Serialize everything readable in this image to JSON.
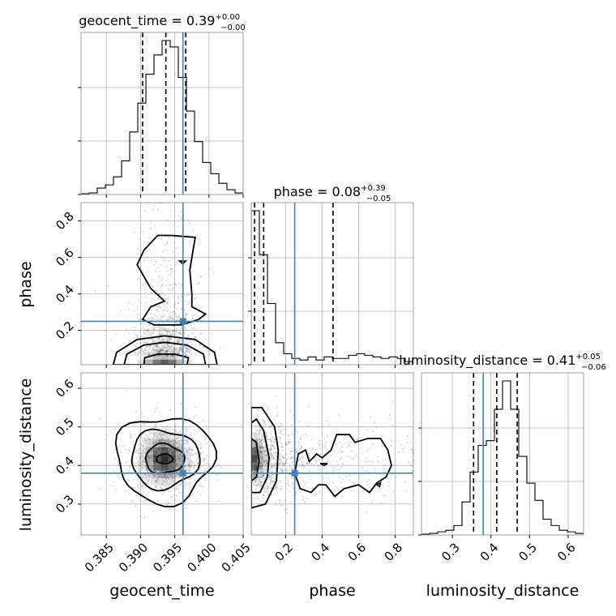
{
  "figure": {
    "ticks_font": "sans-serif",
    "truth_color": "#4682b4",
    "hist_color": "#000000",
    "grid_color": "#b0b0b0"
  },
  "chart_data": {
    "type": "corner",
    "parameters": [
      "geocent_time",
      "phase",
      "luminosity_distance"
    ],
    "truths": {
      "geocent_time": 0.3962,
      "phase": 0.25,
      "luminosity_distance": 0.38
    },
    "titles": {
      "geocent_time": {
        "name": "geocent_time",
        "median": "0.39",
        "plus": "+0.00",
        "minus": "−0.00"
      },
      "phase": {
        "name": "phase",
        "median": "0.08",
        "plus": "+0.39",
        "minus": "−0.05"
      },
      "luminosity_distance": {
        "name": "luminosity_distance",
        "median": "0.41",
        "plus": "+0.05",
        "minus": "−0.06"
      }
    },
    "axes": {
      "geocent_time": {
        "range": [
          0.3813,
          0.405
        ],
        "ticks": [
          0.385,
          0.39,
          0.395,
          0.4,
          0.405
        ],
        "tick_labels": [
          "0.385",
          "0.390",
          "0.395",
          "0.400",
          "0.405"
        ]
      },
      "phase": {
        "range": [
          0.012,
          0.9
        ],
        "ticks": [
          0.2,
          0.4,
          0.6,
          0.8
        ],
        "tick_labels": [
          "0.2",
          "0.4",
          "0.6",
          "0.8"
        ]
      },
      "luminosity_distance": {
        "range": [
          0.22,
          0.64
        ],
        "ticks": [
          0.3,
          0.4,
          0.5,
          0.6
        ],
        "tick_labels": [
          "0.3",
          "0.4",
          "0.5",
          "0.6"
        ]
      }
    },
    "quantiles": {
      "geocent_time": [
        0.3903,
        0.3937,
        0.3966
      ],
      "phase": [
        0.03,
        0.08,
        0.46
      ],
      "luminosity_distance": [
        0.355,
        0.415,
        0.468
      ]
    },
    "histograms": {
      "geocent_time": [
        0.5,
        1,
        4,
        6,
        11,
        21,
        39,
        57,
        75,
        87,
        96,
        92,
        73,
        52,
        33,
        20,
        13,
        7,
        3,
        1
      ],
      "phase": [
        98,
        70,
        39,
        14,
        7,
        4,
        3,
        5,
        3,
        5,
        4,
        4,
        6,
        7,
        6,
        5,
        4,
        5,
        4,
        2
      ],
      "luminosity_distance": [
        0.5,
        1,
        2,
        3,
        6,
        21,
        40,
        57,
        60,
        80,
        98,
        80,
        50,
        33,
        22,
        10,
        6,
        3,
        2,
        1
      ]
    }
  }
}
